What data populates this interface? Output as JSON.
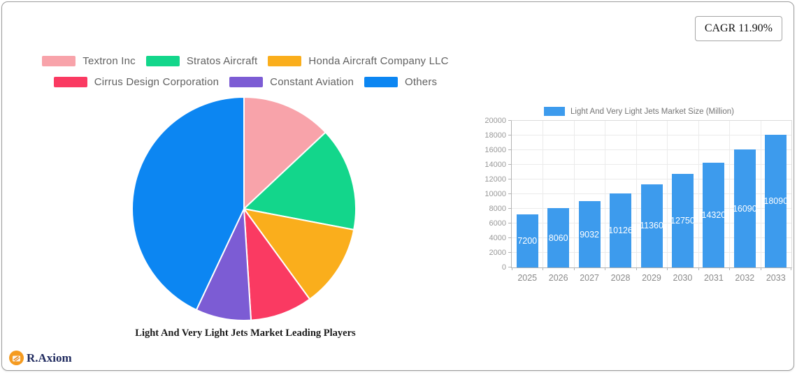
{
  "cagr_badge": {
    "label": "CAGR 11.90%"
  },
  "brand": {
    "name": "R.Axiom"
  },
  "chart_data": [
    {
      "type": "pie",
      "title": "Light And Very Light Jets Market Leading Players",
      "legend_position": "top",
      "start_angle": "top",
      "direction": "clockwise",
      "labels": [
        "Textron Inc",
        "Stratos Aircraft",
        "Honda Aircraft Company LLC",
        "Cirrus Design Corporation",
        "Constant Aviation",
        "Others"
      ],
      "values": [
        13,
        15,
        12,
        9,
        8,
        43
      ],
      "unit": "percent-share",
      "colors": [
        "#F8A3AA",
        "#13D68B",
        "#FAAE1C",
        "#FA3A62",
        "#7C5CD4",
        "#0C86F2"
      ]
    },
    {
      "type": "bar",
      "legend_label": "Light And Very Light Jets Market Size (Million)",
      "categories": [
        "2025",
        "2026",
        "2027",
        "2028",
        "2029",
        "2030",
        "2031",
        "2032",
        "2033"
      ],
      "values": [
        7200,
        8060,
        9032,
        10126,
        11360,
        12750,
        14320,
        16090,
        18090
      ],
      "bar_color": "#3D9BED",
      "value_label_color": "#FFFFFF",
      "ylim": [
        0,
        20000
      ],
      "ytick_step": 2000,
      "grid": true,
      "legend_position": "top"
    }
  ]
}
